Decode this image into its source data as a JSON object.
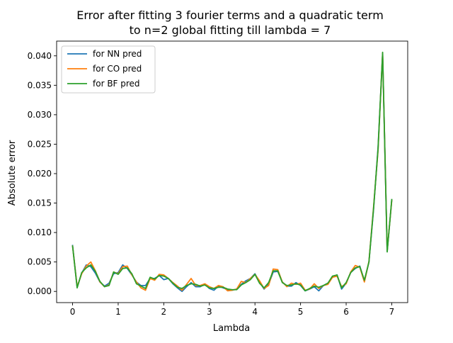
{
  "chart_data": {
    "type": "line",
    "title_line1": "Error after fitting 3 fourier terms and a quadratic term",
    "title_line2": "to n=2 global fitting till lambda = 7",
    "xlabel": "Lambda",
    "ylabel": "Absolute error",
    "xlim": [
      -0.35,
      7.35
    ],
    "ylim": [
      -0.0019,
      0.0425
    ],
    "xticks": [
      0,
      1,
      2,
      3,
      4,
      5,
      6,
      7
    ],
    "xtick_labels": [
      "0",
      "1",
      "2",
      "3",
      "4",
      "5",
      "6",
      "7"
    ],
    "yticks": [
      0.0,
      0.005,
      0.01,
      0.015,
      0.02,
      0.025,
      0.03,
      0.035,
      0.04
    ],
    "ytick_labels": [
      "0.000",
      "0.005",
      "0.010",
      "0.015",
      "0.020",
      "0.025",
      "0.030",
      "0.035",
      "0.040"
    ],
    "legend_position": "top-left",
    "grid": false,
    "x": [
      0,
      0.1,
      0.2,
      0.3,
      0.4,
      0.5,
      0.6,
      0.7,
      0.8,
      0.9,
      1.0,
      1.1,
      1.2,
      1.3,
      1.4,
      1.5,
      1.6,
      1.7,
      1.8,
      1.9,
      2.0,
      2.1,
      2.2,
      2.3,
      2.4,
      2.5,
      2.6,
      2.7,
      2.8,
      2.9,
      3.0,
      3.1,
      3.2,
      3.3,
      3.4,
      3.5,
      3.6,
      3.7,
      3.8,
      3.9,
      4.0,
      4.1,
      4.2,
      4.3,
      4.4,
      4.5,
      4.6,
      4.7,
      4.8,
      4.9,
      5.0,
      5.1,
      5.2,
      5.3,
      5.4,
      5.5,
      5.6,
      5.7,
      5.8,
      5.9,
      6.0,
      6.1,
      6.2,
      6.3,
      6.4,
      6.5,
      6.6,
      6.7,
      6.8,
      6.9,
      7.0
    ],
    "series": [
      {
        "name": "for NN pred",
        "color": "#1f77b4",
        "values": [
          0.0078,
          0.0007,
          0.0031,
          0.0045,
          0.0042,
          0.0031,
          0.0016,
          0.0009,
          0.0014,
          0.003,
          0.0032,
          0.0045,
          0.0039,
          0.0028,
          0.0016,
          0.001,
          0.001,
          0.0022,
          0.0022,
          0.0027,
          0.002,
          0.0022,
          0.0013,
          0.0006,
          0.0,
          0.0008,
          0.0015,
          0.0008,
          0.0008,
          0.0012,
          0.0005,
          0.0002,
          0.0009,
          0.0006,
          0.0003,
          0.0002,
          0.0004,
          0.0012,
          0.0018,
          0.0022,
          0.003,
          0.0016,
          0.0004,
          0.0012,
          0.0033,
          0.0034,
          0.0016,
          0.0009,
          0.0009,
          0.0015,
          0.001,
          0.0001,
          0.0004,
          0.0008,
          0.0001,
          0.001,
          0.0014,
          0.0024,
          0.0028,
          0.0004,
          0.0014,
          0.0032,
          0.0039,
          0.0043,
          0.0017,
          0.005,
          0.0138,
          0.0245,
          0.0403,
          0.0068,
          0.0155
        ]
      },
      {
        "name": "for CO pred",
        "color": "#ff7f0e",
        "values": [
          0.0077,
          0.0008,
          0.003,
          0.0043,
          0.005,
          0.0035,
          0.0016,
          0.0008,
          0.0011,
          0.0033,
          0.003,
          0.0042,
          0.0043,
          0.0028,
          0.0016,
          0.0006,
          0.0002,
          0.0022,
          0.0019,
          0.0029,
          0.0028,
          0.0022,
          0.0015,
          0.0009,
          0.0002,
          0.0012,
          0.0022,
          0.001,
          0.001,
          0.0013,
          0.0008,
          0.0005,
          0.001,
          0.0008,
          0.0001,
          0.0002,
          0.0004,
          0.0017,
          0.0015,
          0.0022,
          0.0029,
          0.0018,
          0.0005,
          0.001,
          0.0038,
          0.0037,
          0.0016,
          0.0008,
          0.0014,
          0.0012,
          0.0014,
          0.0002,
          0.0004,
          0.0013,
          0.0005,
          0.001,
          0.0012,
          0.0024,
          0.0026,
          0.0008,
          0.0013,
          0.0033,
          0.0044,
          0.0041,
          0.0016,
          0.0051,
          0.0142,
          0.024,
          0.0405,
          0.0069,
          0.0154
        ]
      },
      {
        "name": "for BF pred",
        "color": "#2ca02c",
        "values": [
          0.0077,
          0.0006,
          0.0032,
          0.004,
          0.0045,
          0.0034,
          0.0017,
          0.0008,
          0.001,
          0.0033,
          0.0029,
          0.0039,
          0.004,
          0.003,
          0.0013,
          0.0009,
          0.0005,
          0.0024,
          0.0021,
          0.0027,
          0.0026,
          0.0022,
          0.0014,
          0.0007,
          0.0005,
          0.001,
          0.0013,
          0.0012,
          0.0009,
          0.0011,
          0.0006,
          0.0005,
          0.0007,
          0.0007,
          0.0004,
          0.0003,
          0.0003,
          0.0011,
          0.0015,
          0.002,
          0.0029,
          0.0014,
          0.0006,
          0.0015,
          0.0035,
          0.0035,
          0.0015,
          0.001,
          0.0011,
          0.0013,
          0.0011,
          0.0001,
          0.0005,
          0.0009,
          0.0007,
          0.001,
          0.0014,
          0.0026,
          0.0028,
          0.0006,
          0.0015,
          0.0032,
          0.004,
          0.0042,
          0.0019,
          0.005,
          0.014,
          0.0242,
          0.0406,
          0.0067,
          0.0156
        ]
      }
    ]
  }
}
